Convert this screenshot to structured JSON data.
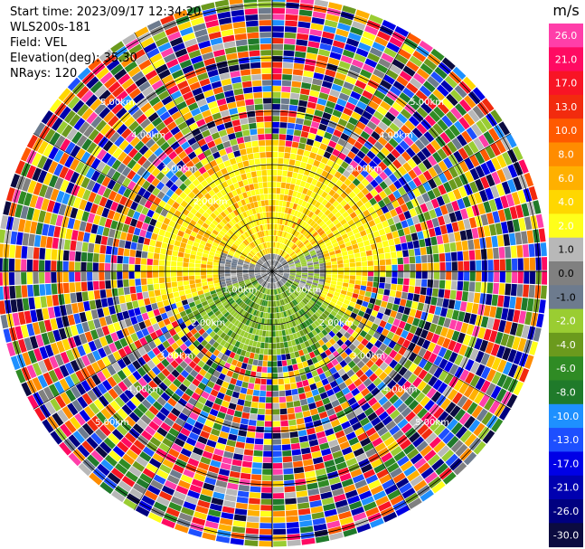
{
  "header": {
    "start_time": "Start time: 2023/09/17 12:34:20",
    "instrument": "WLS200s-181",
    "field": "Field: VEL",
    "elevation": "Elevation(deg): 35.30",
    "nrays": "NRays: 120"
  },
  "colorbar": {
    "unit": "m/s",
    "ticks": [
      "26.0",
      "21.0",
      "17.0",
      "13.0",
      "10.0",
      "8.0",
      "6.0",
      "4.0",
      "2.0",
      "1.0",
      "0.0",
      "-1.0",
      "-2.0",
      "-4.0",
      "-6.0",
      "-8.0",
      "-10.0",
      "-13.0",
      "-17.0",
      "-21.0",
      "-26.0",
      "-30.0"
    ],
    "colors": [
      "#ff3ea9",
      "#ff0a62",
      "#f81425",
      "#f22b0e",
      "#ff5a00",
      "#ff8c00",
      "#ffb000",
      "#ffd700",
      "#ffff1a",
      "#b8b8b8",
      "#808080",
      "#6d7b8e",
      "#9acd32",
      "#6b9a1d",
      "#2f8b24",
      "#1f7a2a",
      "#1e90ff",
      "#1d4fff",
      "#0000e6",
      "#0000b0",
      "#000080",
      "#0b0b40"
    ]
  },
  "chart_data": {
    "type": "heatmap",
    "title": "",
    "field": "VEL",
    "units": "m/s",
    "elevation_deg": 35.3,
    "n_rays": 120,
    "range_rings": [
      "1.00km",
      "1.00km",
      "2.00km",
      "2.00km",
      "3.00km",
      "3.00km",
      "4.00km",
      "4.00km",
      "5.00km",
      "5.00km"
    ],
    "ring_labels_left": [
      "1.00km",
      "2.00km",
      "3.00km",
      "4.00km",
      "5.00km"
    ],
    "ring_labels_right": [
      "1.00km",
      "2.00km",
      "3.00km",
      "4.00km",
      "5.00km"
    ],
    "ring_labels_top_left": [
      "2.00km",
      "3.00km",
      "4.00km",
      "5.00km"
    ],
    "ring_labels_top_right": [
      "3.00km",
      "4.00km",
      "5.00km"
    ],
    "color_limits": [
      -30.0,
      26.0
    ]
  }
}
